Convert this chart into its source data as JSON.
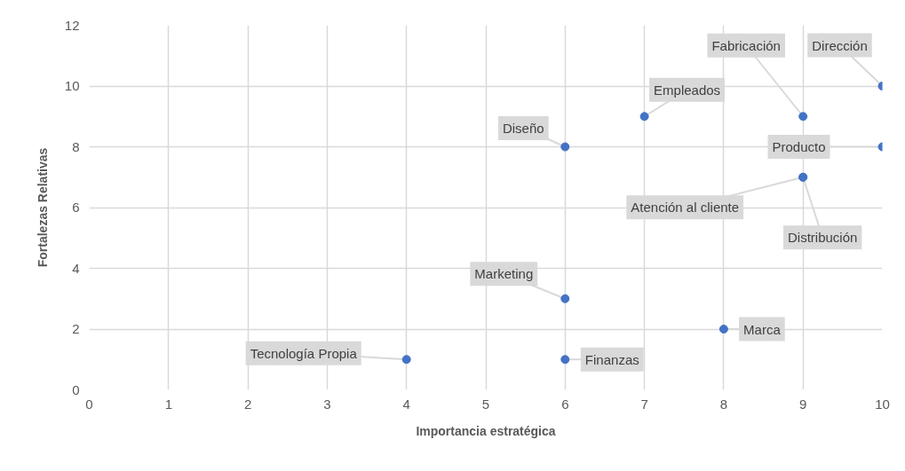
{
  "chart_data": {
    "type": "scatter",
    "xlabel": "Importancia estratégica",
    "ylabel": "Fortalezas Relativas",
    "x": [
      4,
      6,
      6,
      8,
      6,
      7,
      9,
      10,
      10,
      9,
      9
    ],
    "values": [
      1,
      1,
      3,
      2,
      8,
      9,
      9,
      10,
      8,
      7,
      7
    ],
    "color": "#4472c4",
    "marker": "circle",
    "grid": true,
    "xlim": [
      0,
      10
    ],
    "ylim": [
      0,
      12
    ],
    "xticks": [
      0,
      1,
      2,
      3,
      4,
      5,
      6,
      7,
      8,
      9,
      10
    ],
    "yticks": [
      0,
      2,
      4,
      6,
      8,
      10,
      12
    ],
    "annotations": [
      {
        "text": "Tecnología Propia",
        "x": 4,
        "y": 1
      },
      {
        "text": "Finanzas",
        "x": 6,
        "y": 1
      },
      {
        "text": "Marketing",
        "x": 6,
        "y": 3
      },
      {
        "text": "Marca",
        "x": 8,
        "y": 2
      },
      {
        "text": "Diseño",
        "x": 6,
        "y": 8
      },
      {
        "text": "Empleados",
        "x": 7,
        "y": 9
      },
      {
        "text": "Fabricación",
        "x": 9,
        "y": 9
      },
      {
        "text": "Dirección",
        "x": 10,
        "y": 10
      },
      {
        "text": "Producto",
        "x": 10,
        "y": 8
      },
      {
        "text": "Atención al cliente",
        "x": 9,
        "y": 7
      },
      {
        "text": "Distribución",
        "x": 9,
        "y": 7
      }
    ]
  }
}
